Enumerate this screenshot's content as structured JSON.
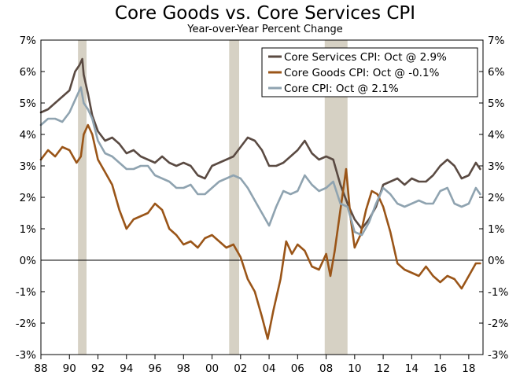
{
  "chart_data": {
    "type": "line",
    "title": "Core Goods vs. Core Services CPI",
    "subtitle": "Year-over-Year Percent Change",
    "xlabel": "",
    "ylabel": "",
    "xlim": [
      1988.0,
      2019.0
    ],
    "ylim": [
      -3,
      7
    ],
    "x_tick_values": [
      1988,
      1990,
      1992,
      1994,
      1996,
      1998,
      2000,
      2002,
      2004,
      2006,
      2008,
      2010,
      2012,
      2014,
      2016,
      2018
    ],
    "x_tick_labels": [
      "88",
      "90",
      "92",
      "94",
      "96",
      "98",
      "00",
      "02",
      "04",
      "06",
      "08",
      "10",
      "12",
      "14",
      "16",
      "18"
    ],
    "y_ticks": [
      -3,
      -2,
      -1,
      0,
      1,
      2,
      3,
      4,
      5,
      6,
      7
    ],
    "y_tick_labels_left": [
      "-3%",
      "-2%",
      "-1%",
      "0%",
      "1%",
      "2%",
      "3%",
      "4%",
      "5%",
      "6%",
      "7%"
    ],
    "y_tick_labels_right": [
      "-3%",
      "-2%",
      "-1%",
      "0%",
      "1%",
      "2%",
      "3%",
      "4%",
      "5%",
      "6%",
      "7%"
    ],
    "recessions": [
      [
        1990.6,
        1991.2
      ],
      [
        2001.2,
        2001.9
      ],
      [
        2007.9,
        2009.5
      ]
    ],
    "colors": {
      "recession": "#d6d1c4",
      "zero_line": "#000000",
      "axis": "#000000"
    },
    "legend": {
      "position": "top-right"
    },
    "series": [
      {
        "name": "Core Services CPI: Oct @ 2.9%",
        "color": "#5a4a42",
        "x": [
          1988.0,
          1988.5,
          1989.0,
          1989.5,
          1990.0,
          1990.4,
          1990.7,
          1990.9,
          1991.0,
          1991.3,
          1991.6,
          1992.0,
          1992.5,
          1993.0,
          1993.5,
          1994.0,
          1994.5,
          1995.0,
          1995.5,
          1996.0,
          1996.5,
          1997.0,
          1997.5,
          1998.0,
          1998.5,
          1999.0,
          1999.5,
          2000.0,
          2000.5,
          2001.0,
          2001.5,
          2002.0,
          2002.5,
          2003.0,
          2003.5,
          2004.0,
          2004.5,
          2005.0,
          2005.5,
          2006.0,
          2006.5,
          2007.0,
          2007.5,
          2008.0,
          2008.5,
          2009.0,
          2009.5,
          2010.0,
          2010.5,
          2011.0,
          2011.5,
          2012.0,
          2012.5,
          2013.0,
          2013.5,
          2014.0,
          2014.5,
          2015.0,
          2015.5,
          2016.0,
          2016.5,
          2017.0,
          2017.5,
          2018.0,
          2018.5,
          2018.8
        ],
        "values": [
          4.7,
          4.8,
          5.0,
          5.2,
          5.4,
          6.0,
          6.2,
          6.4,
          5.9,
          5.3,
          4.6,
          4.1,
          3.8,
          3.9,
          3.7,
          3.4,
          3.5,
          3.3,
          3.2,
          3.1,
          3.3,
          3.1,
          3.0,
          3.1,
          3.0,
          2.7,
          2.6,
          3.0,
          3.1,
          3.2,
          3.3,
          3.6,
          3.9,
          3.8,
          3.5,
          3.0,
          3.0,
          3.1,
          3.3,
          3.5,
          3.8,
          3.4,
          3.2,
          3.3,
          3.2,
          2.4,
          1.8,
          1.3,
          1.0,
          1.3,
          1.7,
          2.4,
          2.5,
          2.6,
          2.4,
          2.6,
          2.5,
          2.5,
          2.7,
          3.0,
          3.2,
          3.0,
          2.6,
          2.7,
          3.1,
          2.9
        ]
      },
      {
        "name": "Core Goods CPI: Oct @ -0.1%",
        "color": "#9a5518",
        "x": [
          1988.0,
          1988.5,
          1989.0,
          1989.5,
          1990.0,
          1990.5,
          1990.8,
          1991.0,
          1991.3,
          1991.6,
          1992.0,
          1992.5,
          1993.0,
          1993.5,
          1994.0,
          1994.5,
          1995.0,
          1995.5,
          1996.0,
          1996.5,
          1997.0,
          1997.5,
          1998.0,
          1998.5,
          1999.0,
          1999.5,
          2000.0,
          2000.5,
          2001.0,
          2001.5,
          2002.0,
          2002.5,
          2003.0,
          2003.5,
          2003.9,
          2004.3,
          2004.8,
          2005.2,
          2005.6,
          2006.0,
          2006.5,
          2007.0,
          2007.5,
          2008.0,
          2008.3,
          2008.6,
          2009.0,
          2009.4,
          2009.7,
          2010.0,
          2010.4,
          2010.8,
          2011.2,
          2011.6,
          2012.0,
          2012.5,
          2013.0,
          2013.5,
          2014.0,
          2014.5,
          2015.0,
          2015.5,
          2016.0,
          2016.5,
          2017.0,
          2017.5,
          2018.0,
          2018.5,
          2018.8
        ],
        "values": [
          3.2,
          3.5,
          3.3,
          3.6,
          3.5,
          3.1,
          3.3,
          4.0,
          4.3,
          4.0,
          3.2,
          2.8,
          2.4,
          1.6,
          1.0,
          1.3,
          1.4,
          1.5,
          1.8,
          1.6,
          1.0,
          0.8,
          0.5,
          0.6,
          0.4,
          0.7,
          0.8,
          0.6,
          0.4,
          0.5,
          0.1,
          -0.6,
          -1.0,
          -1.8,
          -2.5,
          -1.6,
          -0.6,
          0.6,
          0.2,
          0.5,
          0.3,
          -0.2,
          -0.3,
          0.2,
          -0.5,
          0.3,
          1.6,
          2.9,
          1.4,
          0.4,
          0.8,
          1.6,
          2.2,
          2.1,
          1.7,
          0.9,
          -0.1,
          -0.3,
          -0.4,
          -0.5,
          -0.2,
          -0.5,
          -0.7,
          -0.5,
          -0.6,
          -0.9,
          -0.5,
          -0.1,
          -0.1
        ]
      },
      {
        "name": "Core CPI: Oct @ 2.1%",
        "color": "#8fa3b0",
        "x": [
          1988.0,
          1988.5,
          1989.0,
          1989.5,
          1990.0,
          1990.5,
          1990.8,
          1991.0,
          1991.3,
          1991.6,
          1992.0,
          1992.5,
          1993.0,
          1993.5,
          1994.0,
          1994.5,
          1995.0,
          1995.5,
          1996.0,
          1996.5,
          1997.0,
          1997.5,
          1998.0,
          1998.5,
          1999.0,
          1999.5,
          2000.0,
          2000.5,
          2001.0,
          2001.5,
          2002.0,
          2002.5,
          2003.0,
          2003.5,
          2004.0,
          2004.5,
          2005.0,
          2005.5,
          2006.0,
          2006.5,
          2007.0,
          2007.5,
          2008.0,
          2008.5,
          2009.0,
          2009.5,
          2010.0,
          2010.5,
          2011.0,
          2011.5,
          2012.0,
          2012.5,
          2013.0,
          2013.5,
          2014.0,
          2014.5,
          2015.0,
          2015.5,
          2016.0,
          2016.5,
          2017.0,
          2017.5,
          2018.0,
          2018.5,
          2018.8
        ],
        "values": [
          4.3,
          4.5,
          4.5,
          4.4,
          4.7,
          5.2,
          5.5,
          5.0,
          4.8,
          4.5,
          3.8,
          3.4,
          3.3,
          3.1,
          2.9,
          2.9,
          3.0,
          3.0,
          2.7,
          2.6,
          2.5,
          2.3,
          2.3,
          2.4,
          2.1,
          2.1,
          2.3,
          2.5,
          2.6,
          2.7,
          2.6,
          2.3,
          1.9,
          1.5,
          1.1,
          1.7,
          2.2,
          2.1,
          2.2,
          2.7,
          2.4,
          2.2,
          2.3,
          2.5,
          1.8,
          1.7,
          0.9,
          0.8,
          1.2,
          1.8,
          2.3,
          2.1,
          1.8,
          1.7,
          1.8,
          1.9,
          1.8,
          1.8,
          2.2,
          2.3,
          1.8,
          1.7,
          1.8,
          2.3,
          2.1
        ]
      }
    ]
  }
}
